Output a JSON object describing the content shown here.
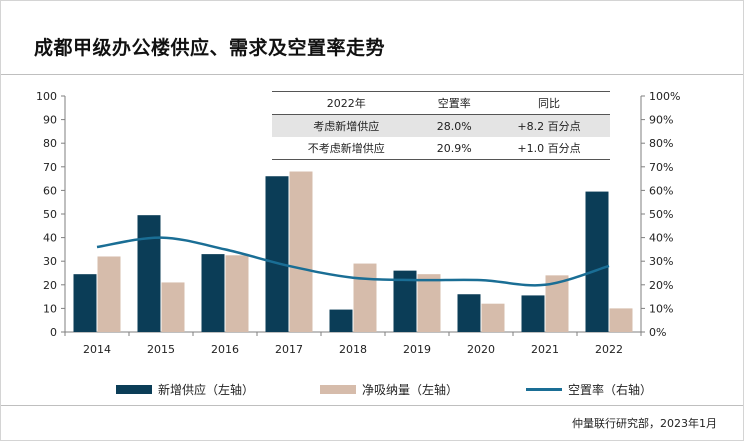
{
  "title": "成都甲级办公楼供应、需求及空置率走势",
  "colors": {
    "supply": "#0b3d57",
    "absorption": "#d6bcab",
    "vacancy": "#1a6e95"
  },
  "table": {
    "headers": [
      "2022年",
      "空置率",
      "同比"
    ],
    "rows": [
      [
        "考虑新增供应",
        "28.0%",
        "+8.2 百分点"
      ],
      [
        "不考虑新增供应",
        "20.9%",
        "+1.0 百分点"
      ]
    ]
  },
  "legend": {
    "supply": "新增供应（左轴）",
    "absorption": "净吸纳量（左轴）",
    "vacancy": "空置率（右轴）"
  },
  "source": "仲量联行研究部，2023年1月",
  "chart_data": {
    "type": "bar",
    "categories": [
      "2014",
      "2015",
      "2016",
      "2017",
      "2018",
      "2019",
      "2020",
      "2021",
      "2022"
    ],
    "series": [
      {
        "name": "新增供应（左轴）",
        "type": "bar",
        "axis": "left",
        "values": [
          24.5,
          49.5,
          33,
          66,
          9.5,
          26,
          16,
          15.5,
          59.5
        ]
      },
      {
        "name": "净吸纳量（左轴）",
        "type": "bar",
        "axis": "left",
        "values": [
          32,
          21,
          32.5,
          68,
          29,
          24.5,
          12,
          24,
          10
        ]
      },
      {
        "name": "空置率（右轴）",
        "type": "line",
        "axis": "right",
        "values": [
          36,
          40,
          35,
          28,
          23,
          22,
          22,
          20,
          28
        ]
      }
    ],
    "yleft": {
      "lim": [
        0,
        100
      ],
      "ticks": [
        "0",
        "10",
        "20",
        "30",
        "40",
        "50",
        "60",
        "70",
        "80",
        "90",
        "100"
      ]
    },
    "yright": {
      "lim": [
        0,
        100
      ],
      "ticks": [
        "0%",
        "10%",
        "20%",
        "30%",
        "40%",
        "50%",
        "60%",
        "70%",
        "80%",
        "90%",
        "100%"
      ]
    },
    "grid": false
  }
}
